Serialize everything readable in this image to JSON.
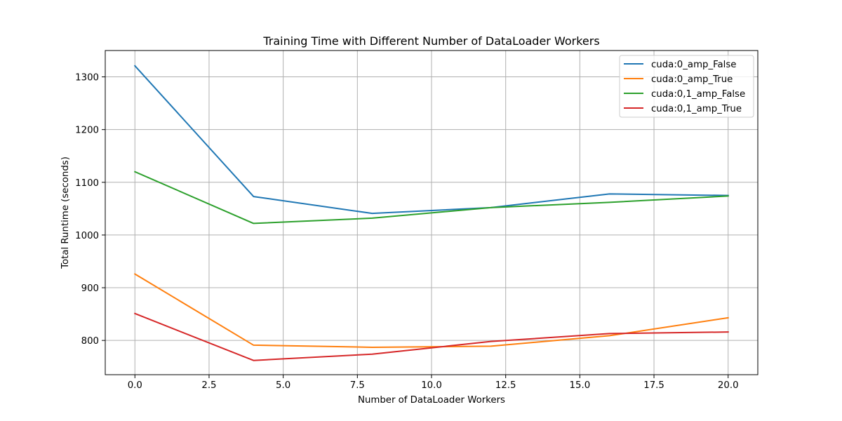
{
  "chart_data": {
    "type": "line",
    "title": "Training Time with Different Number of DataLoader Workers",
    "xlabel": "Number of DataLoader Workers",
    "ylabel": "Total Runtime (seconds)",
    "x": [
      0,
      4,
      8,
      12,
      16,
      20
    ],
    "xlim": [
      -1.0,
      21.0
    ],
    "ylim": [
      735,
      1350
    ],
    "xticks": [
      0.0,
      2.5,
      5.0,
      7.5,
      10.0,
      12.5,
      15.0,
      17.5,
      20.0
    ],
    "xtick_labels": [
      "0.0",
      "2.5",
      "5.0",
      "7.5",
      "10.0",
      "12.5",
      "15.0",
      "17.5",
      "20.0"
    ],
    "yticks": [
      800,
      900,
      1000,
      1100,
      1200,
      1300
    ],
    "ytick_labels": [
      "800",
      "900",
      "1000",
      "1100",
      "1200",
      "1300"
    ],
    "grid": true,
    "legend_position": "top-right",
    "series": [
      {
        "name": "cuda:0_amp_False",
        "color": "#1f77b4",
        "values": [
          1321,
          1073,
          1041,
          1052,
          1078,
          1075
        ]
      },
      {
        "name": "cuda:0_amp_True",
        "color": "#ff7f0e",
        "values": [
          926,
          791,
          787,
          789,
          809,
          843
        ]
      },
      {
        "name": "cuda:0,1_amp_False",
        "color": "#2ca02c",
        "values": [
          1120,
          1022,
          1032,
          1052,
          1062,
          1074
        ]
      },
      {
        "name": "cuda:0,1_amp_True",
        "color": "#d62728",
        "values": [
          851,
          762,
          774,
          798,
          813,
          816
        ]
      }
    ]
  }
}
